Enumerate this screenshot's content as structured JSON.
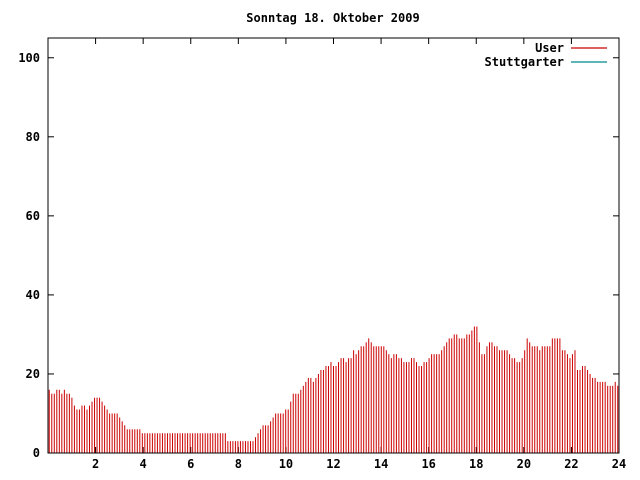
{
  "chart_data": {
    "type": "bar",
    "title": "Sonntag 18. Oktober 2009",
    "xlabel": "",
    "ylabel": "",
    "xlim": [
      0,
      24
    ],
    "ylim": [
      0,
      105
    ],
    "xticks": [
      "2",
      "4",
      "6",
      "8",
      "10",
      "12",
      "14",
      "16",
      "18",
      "20",
      "22",
      "24"
    ],
    "yticks": [
      "0",
      "20",
      "40",
      "60",
      "80",
      "100"
    ],
    "legend_position": "top-right",
    "series": [
      {
        "name": "User",
        "color": "#cc0000",
        "values": [
          16,
          15,
          15,
          16,
          16,
          15,
          16,
          15,
          15,
          14,
          12,
          11,
          11,
          12,
          12,
          11,
          12,
          13,
          14,
          14,
          14,
          13,
          12,
          11,
          10,
          10,
          10,
          10,
          9,
          8,
          7,
          6,
          6,
          6,
          6,
          6,
          6,
          5,
          5,
          5,
          5,
          5,
          5,
          5,
          5,
          5,
          5,
          5,
          5,
          5,
          5,
          5,
          5,
          5,
          5,
          5,
          5,
          5,
          5,
          5,
          5,
          5,
          5,
          5,
          5,
          5,
          5,
          5,
          5,
          5,
          5,
          3,
          3,
          3,
          3,
          3,
          3,
          3,
          3,
          3,
          3,
          3,
          4,
          5,
          6,
          7,
          7,
          7,
          8,
          9,
          10,
          10,
          10,
          10,
          11,
          11,
          13,
          15,
          15,
          15,
          16,
          17,
          18,
          19,
          19,
          18,
          19,
          20,
          21,
          21,
          22,
          22,
          23,
          22,
          22,
          23,
          24,
          24,
          23,
          24,
          24,
          26,
          25,
          26,
          27,
          27,
          28,
          29,
          28,
          27,
          27,
          27,
          27,
          27,
          26,
          25,
          24,
          25,
          25,
          24,
          24,
          23,
          23,
          23,
          24,
          24,
          23,
          22,
          22,
          23,
          23,
          24,
          25,
          25,
          25,
          25,
          26,
          27,
          28,
          29,
          29,
          30,
          30,
          29,
          29,
          29,
          30,
          30,
          31,
          32,
          32,
          28,
          25,
          25,
          27,
          28,
          28,
          27,
          27,
          26,
          26,
          26,
          26,
          25,
          24,
          24,
          23,
          23,
          24,
          26,
          29,
          28,
          27,
          27,
          27,
          26,
          27,
          27,
          27,
          27,
          29,
          29,
          29,
          29,
          26,
          26,
          25,
          24,
          25,
          26,
          21,
          21,
          22,
          22,
          21,
          20,
          19,
          19,
          18,
          18,
          18,
          18,
          17,
          17,
          17,
          18,
          17
        ]
      },
      {
        "name": "Stuttgarter",
        "color": "#008b8b",
        "values": []
      }
    ]
  }
}
